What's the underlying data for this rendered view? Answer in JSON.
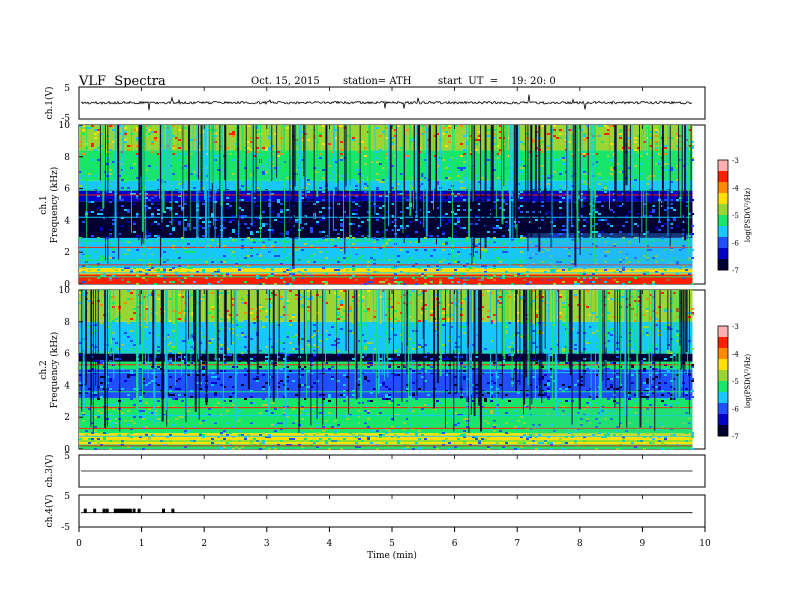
{
  "header": {
    "title": "VLF  Spectra",
    "date": "Oct. 15, 2015",
    "station": "station= ATH",
    "start": "start  UT  =    19: 20: 0"
  },
  "chart_data": [
    {
      "type": "line",
      "id": "ch1-waveform",
      "ylabel": "ch.1(V)",
      "ylim": [
        -5,
        5
      ],
      "y_ticks": [
        "5",
        "-5"
      ],
      "x_range_min": [
        0,
        9.8
      ],
      "description_values": {
        "baseline": 0.1,
        "noise_amplitude": 0.8
      }
    },
    {
      "type": "heatmap",
      "id": "ch1-spectrogram",
      "ylabel": "ch.1\nFrequency  (kHz)",
      "y_ticks": [
        "0",
        "2",
        "4",
        "6",
        "8",
        "10"
      ],
      "ylim": [
        0,
        10
      ],
      "x_range_min": [
        0,
        9.8
      ],
      "colorbar": {
        "label": "log(PSD(V²/Hz)",
        "ticks": [
          "-3",
          "-4",
          "-5",
          "-6",
          "-7"
        ],
        "range": [
          -7,
          -3
        ]
      },
      "colors": [
        "#000033",
        "#0000c8",
        "#1f4fff",
        "#16c8ff",
        "#18e66a",
        "#9ad633",
        "#ffe000",
        "#ff8a00",
        "#ff2000",
        "#ffb0b0"
      ]
    },
    {
      "type": "heatmap",
      "id": "ch2-spectrogram",
      "ylabel": "ch.2\nFrequency  (kHz)",
      "y_ticks": [
        "0",
        "2",
        "4",
        "6",
        "8",
        "10"
      ],
      "ylim": [
        0,
        10
      ],
      "x_range_min": [
        0,
        9.8
      ],
      "colorbar": {
        "label": "log(PSD(V²/Hz)",
        "ticks": [
          "-3",
          "-4",
          "-5",
          "-6",
          "-7"
        ],
        "range": [
          -7,
          -3
        ]
      }
    },
    {
      "type": "line",
      "id": "ch3-waveform",
      "ylabel": "ch.3(V)",
      "ylim": [
        -5,
        5
      ],
      "y_ticks": [
        "5"
      ],
      "x_range_min": [
        0,
        9.8
      ],
      "description_values": {
        "baseline": 0
      }
    },
    {
      "type": "line",
      "id": "ch4-waveform",
      "ylabel": "ch.4(V)",
      "ylim": [
        -5,
        5
      ],
      "y_ticks": [
        "5",
        "-5"
      ],
      "x_range_min": [
        0,
        9.8
      ],
      "marker_times_min": [
        0.1,
        0.25,
        0.4,
        0.45,
        0.58,
        0.62,
        0.66,
        0.7,
        0.74,
        0.78,
        0.82,
        0.88,
        0.96,
        1.35,
        1.5
      ],
      "description_values": {
        "baseline": 0.1
      }
    }
  ],
  "x_axis": {
    "label": "Time  (min)",
    "ticks": [
      "0",
      "1",
      "2",
      "3",
      "4",
      "5",
      "6",
      "7",
      "8",
      "9",
      "10"
    ],
    "xlim": [
      0,
      10
    ]
  }
}
